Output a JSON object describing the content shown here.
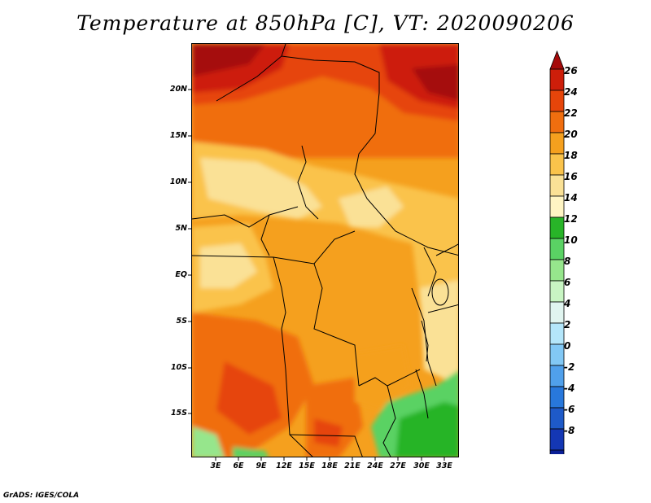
{
  "title": "Temperature at 850hPa [C], VT: 2020090206",
  "credit": "GrADS: IGES/COLA",
  "map": {
    "lat_labels": [
      "20N",
      "15N",
      "10N",
      "5N",
      "EQ",
      "5S",
      "10S",
      "15S"
    ],
    "lon_labels": [
      "3E",
      "6E",
      "9E",
      "12E",
      "15E",
      "18E",
      "21E",
      "24E",
      "27E",
      "30E",
      "33E"
    ]
  },
  "colorbar": {
    "labels": [
      "26",
      "24",
      "22",
      "20",
      "18",
      "16",
      "14",
      "12",
      "10",
      "8",
      "6",
      "4",
      "2",
      "0",
      "-2",
      "-4",
      "-6",
      "-8"
    ],
    "colors": [
      "#a50a0a",
      "#cd1e0a",
      "#e6450a",
      "#f06e0f",
      "#f5a01e",
      "#fac34b",
      "#fae196",
      "#fff5c3",
      "#28b428",
      "#5ad264",
      "#96e68c",
      "#c8f5c3",
      "#e1f5f0",
      "#b4e6fa",
      "#82c8f5",
      "#50a0eb",
      "#2878dc",
      "#1e5ac8",
      "#1437b4",
      "#0a1e96",
      "#050a6e",
      "#e6e6ff"
    ]
  }
}
